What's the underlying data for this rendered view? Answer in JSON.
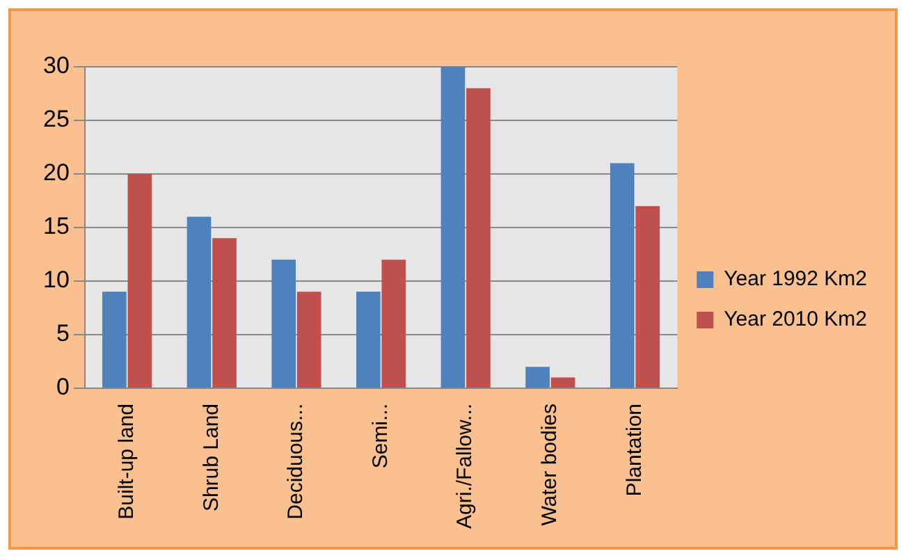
{
  "chart_data": {
    "type": "bar",
    "categories": [
      "Built-up land",
      "Shrub Land",
      "Deciduous...",
      "Semi...",
      "Agri./Fallow...",
      "Water bodies",
      "Plantation"
    ],
    "series": [
      {
        "name": "Year 1992 Km2",
        "color": "#4f81bd",
        "values": [
          9,
          16,
          12,
          9,
          30,
          2,
          21
        ]
      },
      {
        "name": "Year 2010 Km2",
        "color": "#c0504d",
        "values": [
          20,
          14,
          9,
          12,
          28,
          1,
          17
        ]
      }
    ],
    "ylim": [
      0,
      30
    ],
    "yticks": [
      0,
      5,
      10,
      15,
      20,
      25,
      30
    ],
    "grid": "y",
    "legend": "right"
  }
}
